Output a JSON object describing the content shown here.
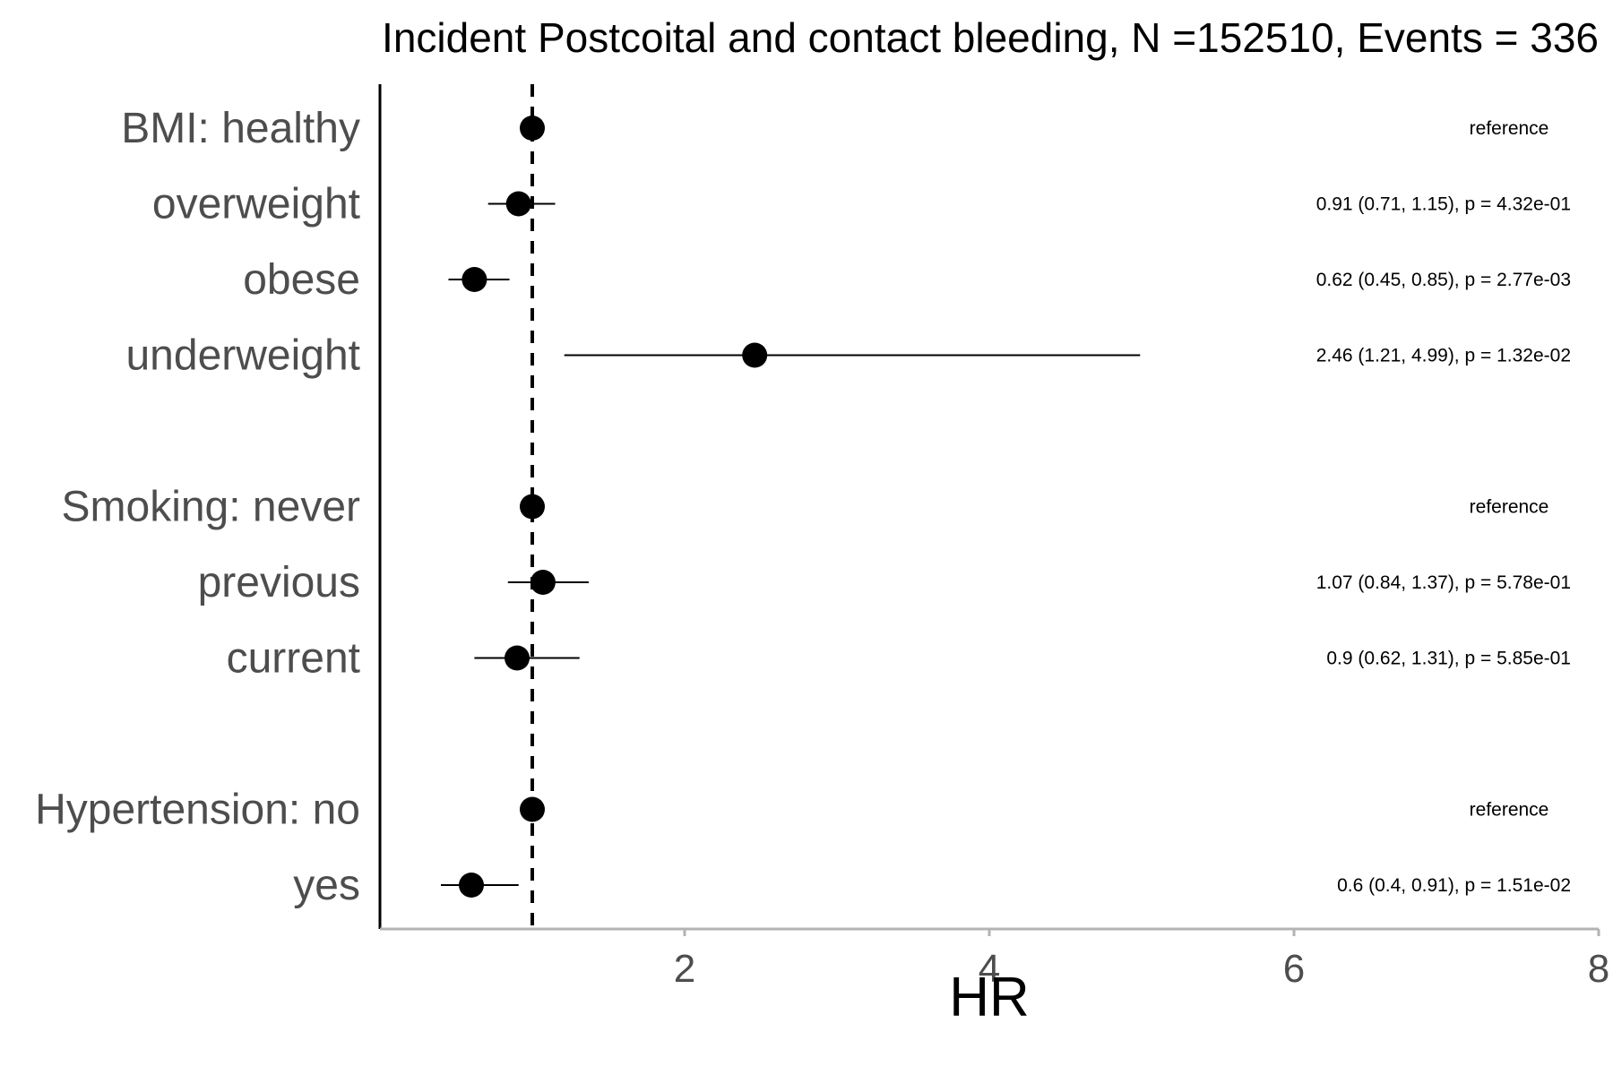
{
  "chart_data": {
    "type": "scatter",
    "subtype": "forest-plot",
    "title": "Incident Postcoital and contact bleeding, N =152510, Events = 336",
    "xlabel": "HR",
    "ylabel": "",
    "xlim": [
      0.0,
      8.0
    ],
    "xticks": [
      2,
      4,
      6,
      8
    ],
    "xtick_labels": [
      "2",
      "4",
      "6",
      "8"
    ],
    "reference_line": 1,
    "grid": false,
    "rows": [
      {
        "label": "BMI: healthy",
        "hr": 1.0,
        "lower": null,
        "upper": null,
        "annotation": "reference",
        "group": 0
      },
      {
        "label": "overweight",
        "hr": 0.91,
        "lower": 0.71,
        "upper": 1.15,
        "annotation": "0.91 (0.71, 1.15), p = 4.32e-01",
        "group": 0
      },
      {
        "label": "obese",
        "hr": 0.62,
        "lower": 0.45,
        "upper": 0.85,
        "annotation": "0.62 (0.45, 0.85), p = 2.77e-03",
        "group": 0
      },
      {
        "label": "underweight",
        "hr": 2.46,
        "lower": 1.21,
        "upper": 4.99,
        "annotation": "2.46 (1.21, 4.99), p = 1.32e-02",
        "group": 0
      },
      {
        "label": "Smoking: never",
        "hr": 1.0,
        "lower": null,
        "upper": null,
        "annotation": "reference",
        "group": 1
      },
      {
        "label": "previous",
        "hr": 1.07,
        "lower": 0.84,
        "upper": 1.37,
        "annotation": "1.07 (0.84, 1.37), p = 5.78e-01",
        "group": 1
      },
      {
        "label": "current",
        "hr": 0.9,
        "lower": 0.62,
        "upper": 1.31,
        "annotation": "0.9 (0.62, 1.31), p = 5.85e-01",
        "group": 1
      },
      {
        "label": "Hypertension: no",
        "hr": 1.0,
        "lower": null,
        "upper": null,
        "annotation": "reference",
        "group": 2
      },
      {
        "label": "yes",
        "hr": 0.6,
        "lower": 0.4,
        "upper": 0.91,
        "annotation": "0.6 (0.4, 0.91), p = 1.51e-02",
        "group": 2
      }
    ]
  },
  "colors": {
    "point": "#000000",
    "axis": "#000000",
    "x_axis_line": "#b3b3b3",
    "label": "#4d4d4d"
  }
}
